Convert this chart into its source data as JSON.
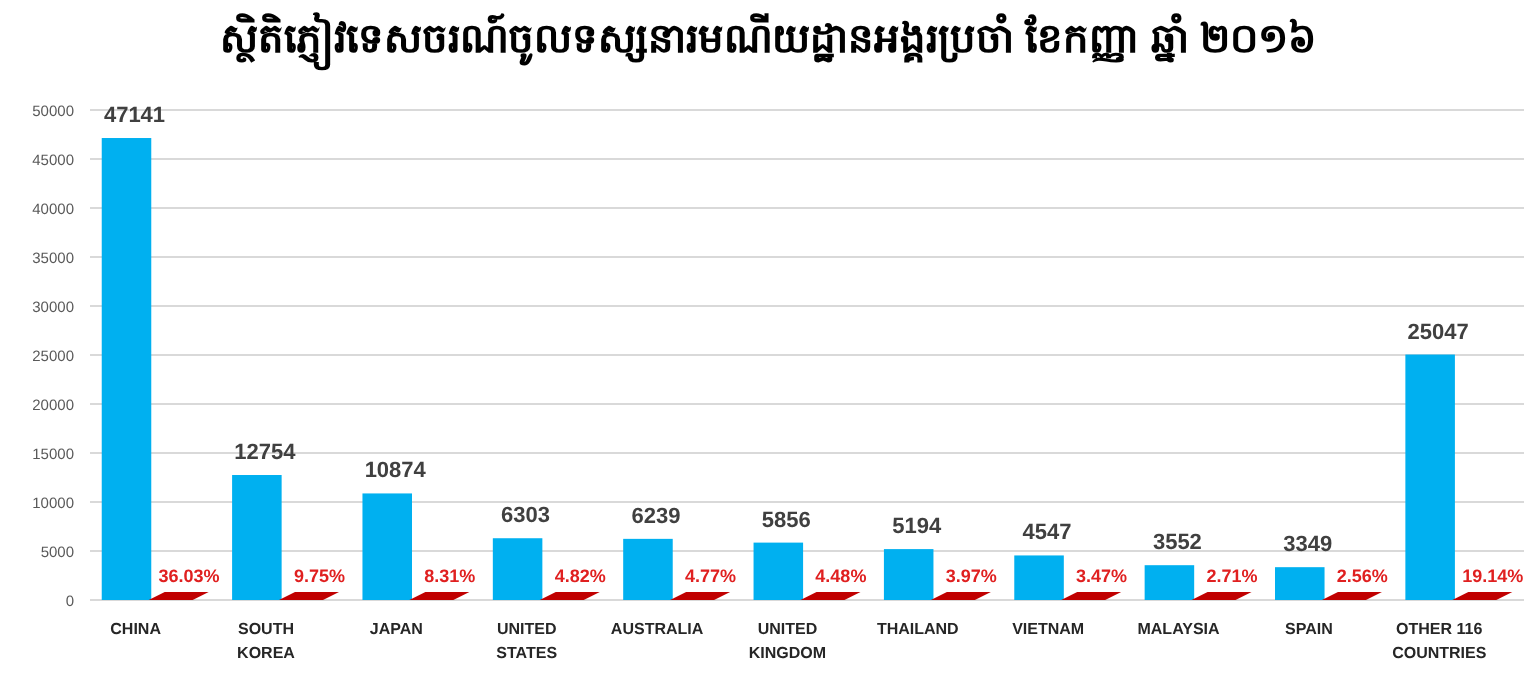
{
  "chart_data": {
    "type": "bar",
    "title": "ស្ថិតិភ្ញៀវទេសចរណ៍ចូលទស្សនារមណីយដ្ឋានអង្គរប្រចាំ ខែកញ្ញា ឆ្នាំ ២០១៦",
    "categories": [
      "CHINA",
      "SOUTH KOREA",
      "JAPAN",
      "UNITED STATES",
      "AUSTRALIA",
      "UNITED KINGDOM",
      "THAILAND",
      "VIETNAM",
      "MALAYSIA",
      "SPAIN",
      "OTHER 116 COUNTRIES"
    ],
    "series": [
      {
        "color": "#00b0f0",
        "values": [
          47141,
          12754,
          10874,
          6303,
          6239,
          5856,
          5194,
          4547,
          3552,
          3349,
          25047
        ]
      }
    ],
    "data_labels": true,
    "ylim": [
      0,
      50000
    ],
    "yticks": [
      0,
      5000,
      10000,
      15000,
      20000,
      25000,
      30000,
      35000,
      40000,
      45000,
      50000
    ],
    "grid": "y",
    "annotations": [
      {
        "text": "36.03%",
        "x": "CHINA",
        "y": 0
      },
      {
        "text": "9.75%",
        "x": "SOUTH KOREA",
        "y": 0
      },
      {
        "text": "8.31%",
        "x": "JAPAN",
        "y": 0
      },
      {
        "text": "4.82%",
        "x": "UNITED STATES",
        "y": 0
      },
      {
        "text": "4.77%",
        "x": "AUSTRALIA",
        "y": 0
      },
      {
        "text": "4.48%",
        "x": "UNITED KINGDOM",
        "y": 0
      },
      {
        "text": "3.97%",
        "x": "THAILAND",
        "y": 0
      },
      {
        "text": "3.47%",
        "x": "VIETNAM",
        "y": 0
      },
      {
        "text": "2.71%",
        "x": "MALAYSIA",
        "y": 0
      },
      {
        "text": "2.56%",
        "x": "SPAIN",
        "y": 0
      },
      {
        "text": "19.14%",
        "x": "OTHER 116 COUNTRIES",
        "y": 0
      }
    ]
  }
}
